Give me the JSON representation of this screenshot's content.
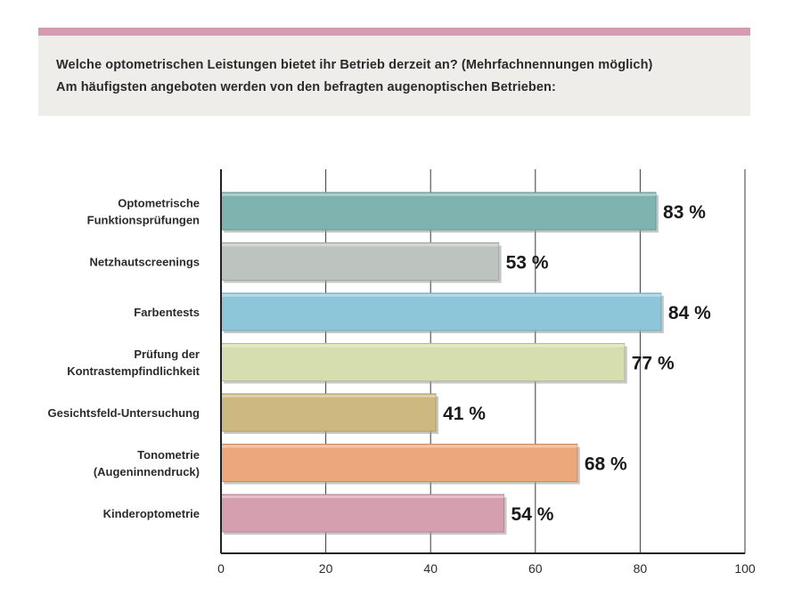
{
  "header": {
    "question": "Welche optometrischen Leistungen bietet ihr Betrieb derzeit an? (Mehrfachnennungen möglich)",
    "subtitle": "Am häufigsten angeboten werden von den befragten augenoptischen Betrieben:"
  },
  "chart_data": {
    "type": "bar",
    "orientation": "horizontal",
    "title": "Welche optometrischen Leistungen bietet ihr Betrieb derzeit an? (Mehrfachnennungen möglich)",
    "subtitle": "Am häufigsten angeboten werden von den befragten augenoptischen Betrieben:",
    "xlabel": "",
    "ylabel": "",
    "xlim": [
      0,
      100
    ],
    "xticks": [
      0,
      20,
      40,
      60,
      80,
      100
    ],
    "grid": true,
    "categories": [
      [
        "Optometrische",
        "Funktionsprüfungen"
      ],
      [
        "Netzhautscreenings"
      ],
      [
        "Farbentests"
      ],
      [
        "Prüfung der",
        "Kontrastempfindlichkeit"
      ],
      [
        "Gesichtsfeld-Untersuchung"
      ],
      [
        "Tonometrie",
        "(Augeninnendruck)"
      ],
      [
        "Kinderoptometrie"
      ]
    ],
    "values": [
      83,
      53,
      84,
      77,
      41,
      68,
      54
    ],
    "value_labels": [
      "83 %",
      "53 %",
      "84 %",
      "77 %",
      "41 %",
      "68 %",
      "54 %"
    ],
    "colors": [
      "#7eb3b0",
      "#bdc4bf",
      "#8ec6d9",
      "#d6deb0",
      "#cdb87f",
      "#eda77c",
      "#d59fb0"
    ]
  }
}
